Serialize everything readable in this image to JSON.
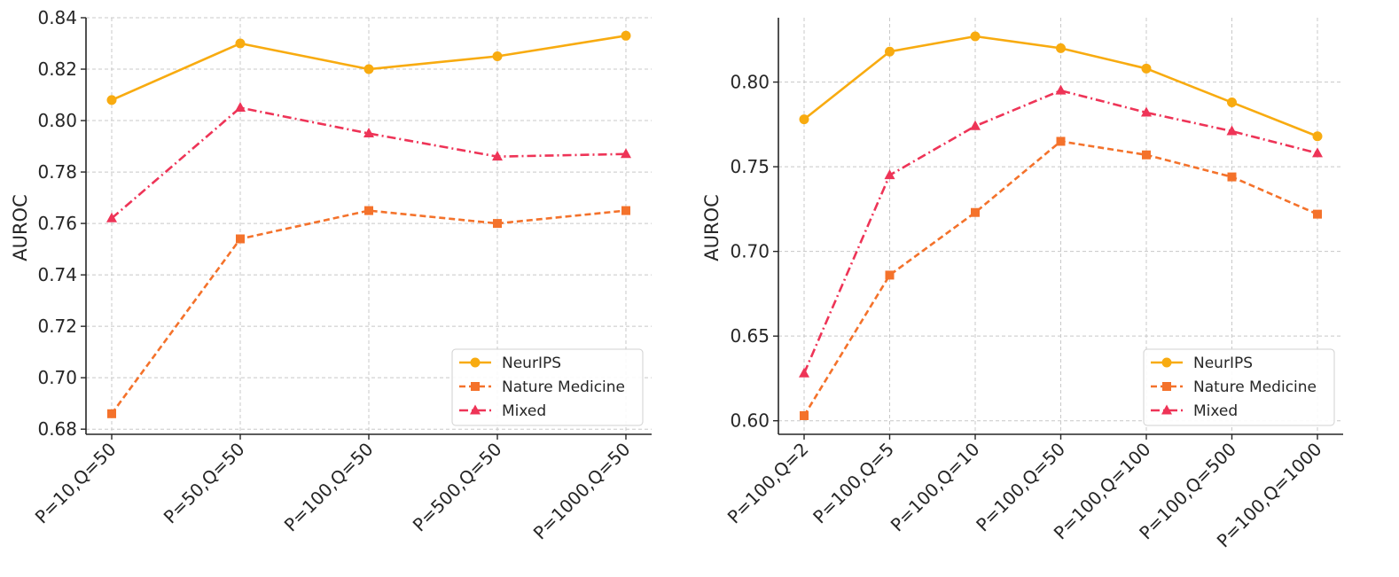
{
  "chart_data": [
    {
      "type": "line",
      "title": "",
      "xlabel": "",
      "ylabel": "AUROC",
      "categories": [
        "P=10,Q=50",
        "P=50,Q=50",
        "P=100,Q=50",
        "P=500,Q=50",
        "P=1000,Q=50"
      ],
      "ylim": [
        0.678,
        0.84
      ],
      "yticks": [
        0.68,
        0.7,
        0.72,
        0.74,
        0.76,
        0.78,
        0.8,
        0.82,
        0.84
      ],
      "ytick_labels": [
        "0.68",
        "0.70",
        "0.72",
        "0.74",
        "0.76",
        "0.78",
        "0.80",
        "0.82",
        "0.84"
      ],
      "grid": true,
      "legend": "lower-right",
      "series": [
        {
          "name": "NeurIPS",
          "values": [
            0.808,
            0.83,
            0.82,
            0.825,
            0.833
          ],
          "color": "#f8ab10",
          "marker": "circle",
          "dash": "solid"
        },
        {
          "name": "Nature Medicine",
          "values": [
            0.686,
            0.754,
            0.765,
            0.76,
            0.765
          ],
          "color": "#f4722b",
          "marker": "square",
          "dash": "dashed"
        },
        {
          "name": "Mixed",
          "values": [
            0.762,
            0.805,
            0.795,
            0.786,
            0.787
          ],
          "color": "#ee3457",
          "marker": "triangle",
          "dash": "dashdot"
        }
      ]
    },
    {
      "type": "line",
      "title": "",
      "xlabel": "",
      "ylabel": "AUROC",
      "categories": [
        "P=100,Q=2",
        "P=100,Q=5",
        "P=100,Q=10",
        "P=100,Q=50",
        "P=100,Q=100",
        "P=100,Q=500",
        "P=100,Q=1000"
      ],
      "ylim": [
        0.592,
        0.838
      ],
      "yticks": [
        0.6,
        0.65,
        0.7,
        0.75,
        0.8
      ],
      "ytick_labels": [
        "0.60",
        "0.65",
        "0.70",
        "0.75",
        "0.80"
      ],
      "grid": true,
      "legend": "lower-right",
      "series": [
        {
          "name": "NeurIPS",
          "values": [
            0.778,
            0.818,
            0.827,
            0.82,
            0.808,
            0.788,
            0.768
          ],
          "color": "#f8ab10",
          "marker": "circle",
          "dash": "solid"
        },
        {
          "name": "Nature Medicine",
          "values": [
            0.603,
            0.686,
            0.723,
            0.765,
            0.757,
            0.744,
            0.722
          ],
          "color": "#f4722b",
          "marker": "square",
          "dash": "dashed"
        },
        {
          "name": "Mixed",
          "values": [
            0.628,
            0.745,
            0.774,
            0.795,
            0.782,
            0.771,
            0.758
          ],
          "color": "#ee3457",
          "marker": "triangle",
          "dash": "dashdot"
        }
      ]
    }
  ]
}
